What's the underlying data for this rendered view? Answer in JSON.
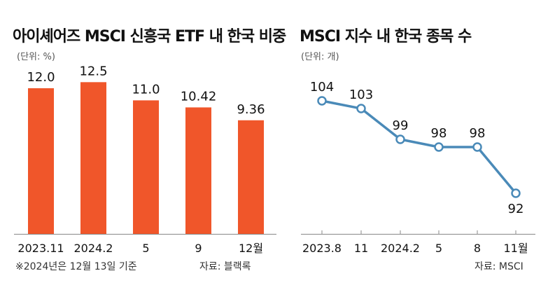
{
  "chart_data": [
    {
      "type": "bar",
      "title": "아이셰어즈 MSCI 신흥국 ETF 내 한국 비중",
      "unit": "(단위: %)",
      "categories": [
        "2023.11",
        "2024.2",
        "5",
        "9",
        "12월"
      ],
      "values": [
        12.0,
        12.5,
        11.0,
        10.42,
        9.36
      ],
      "value_labels": [
        "12.0",
        "12.5",
        "11.0",
        "10.42",
        "9.36"
      ],
      "ylim": [
        0,
        13.5
      ],
      "color": "#f0562a",
      "note": "※2024년은 12월 13일 기준",
      "source": "자료: 블랙록"
    },
    {
      "type": "line",
      "title": "MSCI 지수 내 한국 종목 수",
      "unit": "(단위: 개)",
      "categories": [
        "2023.8",
        "11",
        "2024.2",
        "5",
        "8",
        "11월"
      ],
      "values": [
        104,
        103,
        99,
        98,
        98,
        92
      ],
      "ylim": [
        88,
        108
      ],
      "color": "#4a8ab8",
      "source": "자료: MSCI"
    }
  ]
}
